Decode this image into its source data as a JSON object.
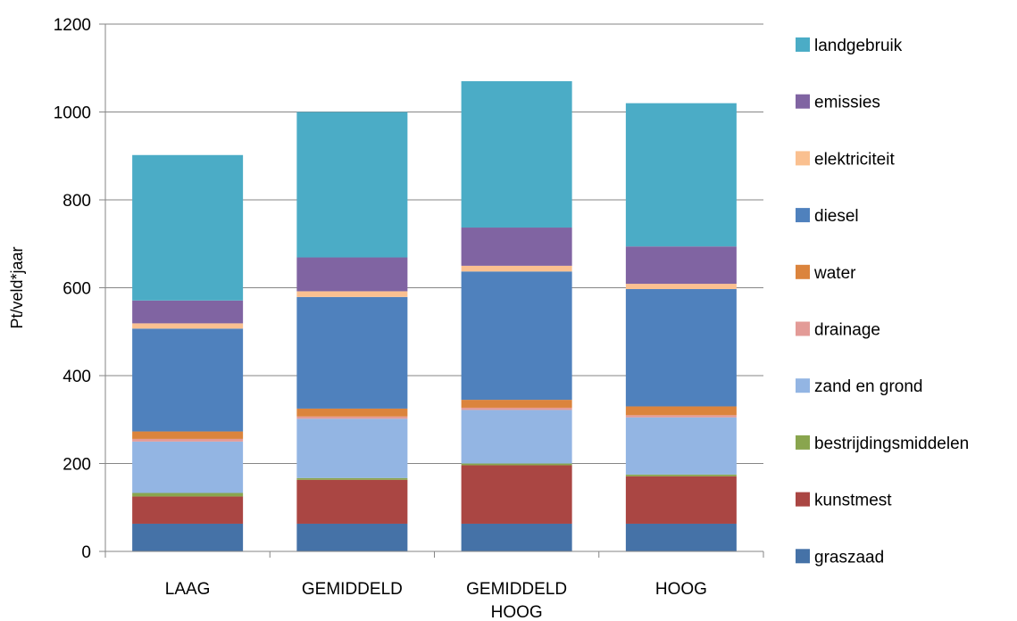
{
  "chart_data": {
    "type": "bar",
    "stacked": true,
    "title": "",
    "xlabel": "",
    "ylabel": "Pt/veld*jaar",
    "ylim": [
      0,
      1200
    ],
    "yticks": [
      "0",
      "200",
      "400",
      "600",
      "800",
      "1000",
      "1200"
    ],
    "grid": true,
    "legend_position": "right",
    "categories": [
      [
        "LAAG"
      ],
      [
        "GEMIDDELD"
      ],
      [
        "GEMIDDELD",
        "HOOG"
      ],
      [
        "HOOG"
      ]
    ],
    "series": [
      {
        "name": "graszaad",
        "color": "#4572A7",
        "values": [
          63,
          63,
          63,
          63
        ]
      },
      {
        "name": "kunstmest",
        "color": "#AA4643",
        "values": [
          62,
          100,
          133,
          108
        ]
      },
      {
        "name": "bestrijdingsmiddelen",
        "color": "#89A54E",
        "values": [
          8,
          4,
          4,
          4
        ]
      },
      {
        "name": "zand en grond",
        "color": "#93B5E3",
        "values": [
          117,
          135,
          122,
          130
        ]
      },
      {
        "name": "drainage",
        "color": "#E39B97",
        "values": [
          6,
          5,
          5,
          5
        ]
      },
      {
        "name": "water",
        "color": "#DB843D",
        "values": [
          17,
          18,
          18,
          20
        ]
      },
      {
        "name": "diesel",
        "color": "#4F81BD",
        "values": [
          234,
          254,
          292,
          267
        ]
      },
      {
        "name": "elektriciteit",
        "color": "#FAC090",
        "values": [
          12,
          13,
          13,
          12
        ]
      },
      {
        "name": "emissies",
        "color": "#8064A2",
        "values": [
          52,
          77,
          87,
          85
        ]
      },
      {
        "name": "landgebruik",
        "color": "#4BACC6",
        "values": [
          331,
          331,
          333,
          326
        ]
      }
    ]
  }
}
